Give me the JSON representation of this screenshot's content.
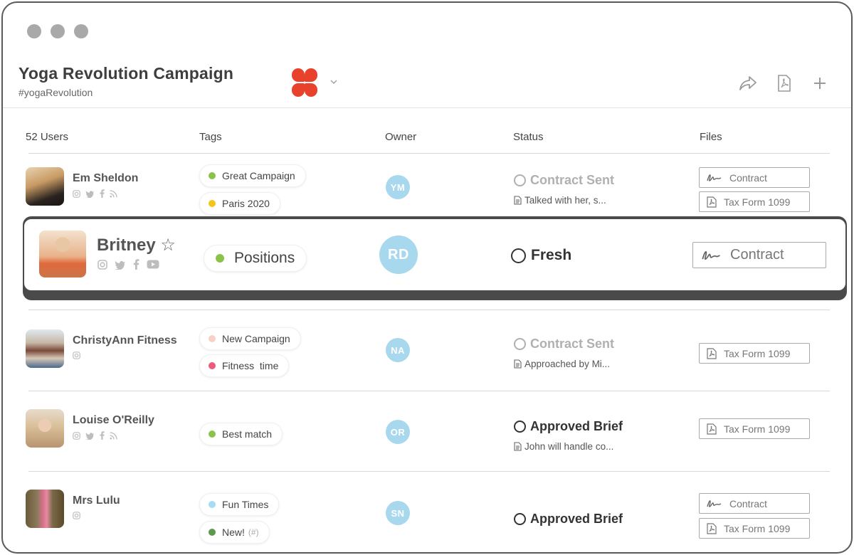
{
  "campaign": {
    "title": "Yoga Revolution Campaign",
    "hashtag": "#yogaRevolution",
    "brand_color": "#e8412c"
  },
  "header_icons": [
    "share-icon",
    "pdf-icon",
    "plus-icon"
  ],
  "columns": {
    "users": "52 Users",
    "tags": "Tags",
    "owner": "Owner",
    "status": "Status",
    "files": "Files"
  },
  "rows": [
    {
      "name": "Em Sheldon",
      "socials": [
        "instagram",
        "twitter",
        "facebook",
        "rss"
      ],
      "tags": [
        {
          "label": "Great Campaign",
          "color": "#8bc34a"
        },
        {
          "label": "Paris 2020",
          "color": "#f5c518"
        }
      ],
      "owner": "YM",
      "status": "Contract Sent",
      "status_style": "dim",
      "note": "Talked with her, s...",
      "files": [
        "Contract",
        "Tax Form 1099"
      ]
    },
    {
      "name": "Britney",
      "star": "☆",
      "socials": [
        "instagram",
        "twitter",
        "facebook",
        "youtube"
      ],
      "tags": [
        {
          "label": "Positions",
          "color": "#8bc34a"
        }
      ],
      "owner": "RD",
      "status": "Fresh",
      "status_style": "dark",
      "files": [
        "Contract"
      ]
    },
    {
      "name": "ChristyAnn Fitness",
      "socials": [
        "instagram"
      ],
      "tags": [
        {
          "label": "New Campaign",
          "color": "#f8d0c4"
        },
        {
          "label": "Fitness  time",
          "color": "#ec5a7c"
        }
      ],
      "owner": "NA",
      "status": "Contract Sent",
      "status_style": "dim",
      "note": "Approached by Mi...",
      "files": [
        "Tax Form 1099"
      ]
    },
    {
      "name": "Louise O'Reilly",
      "socials": [
        "instagram",
        "twitter",
        "facebook",
        "rss"
      ],
      "tags": [
        {
          "label": "Best match",
          "color": "#8bc34a"
        }
      ],
      "owner": "OR",
      "status": "Approved Brief",
      "status_style": "dark",
      "note": "John will handle co...",
      "files": [
        "Tax Form 1099"
      ]
    },
    {
      "name": "Mrs Lulu",
      "socials": [
        "instagram"
      ],
      "tags": [
        {
          "label": "Fun Times",
          "color": "#a8dcf2"
        },
        {
          "label": "New!",
          "extra": "(#)",
          "color": "#5a9a4a"
        }
      ],
      "owner": "SN",
      "status": "Approved Brief",
      "status_style": "dark",
      "files": [
        "Contract",
        "Tax Form 1099"
      ]
    }
  ]
}
